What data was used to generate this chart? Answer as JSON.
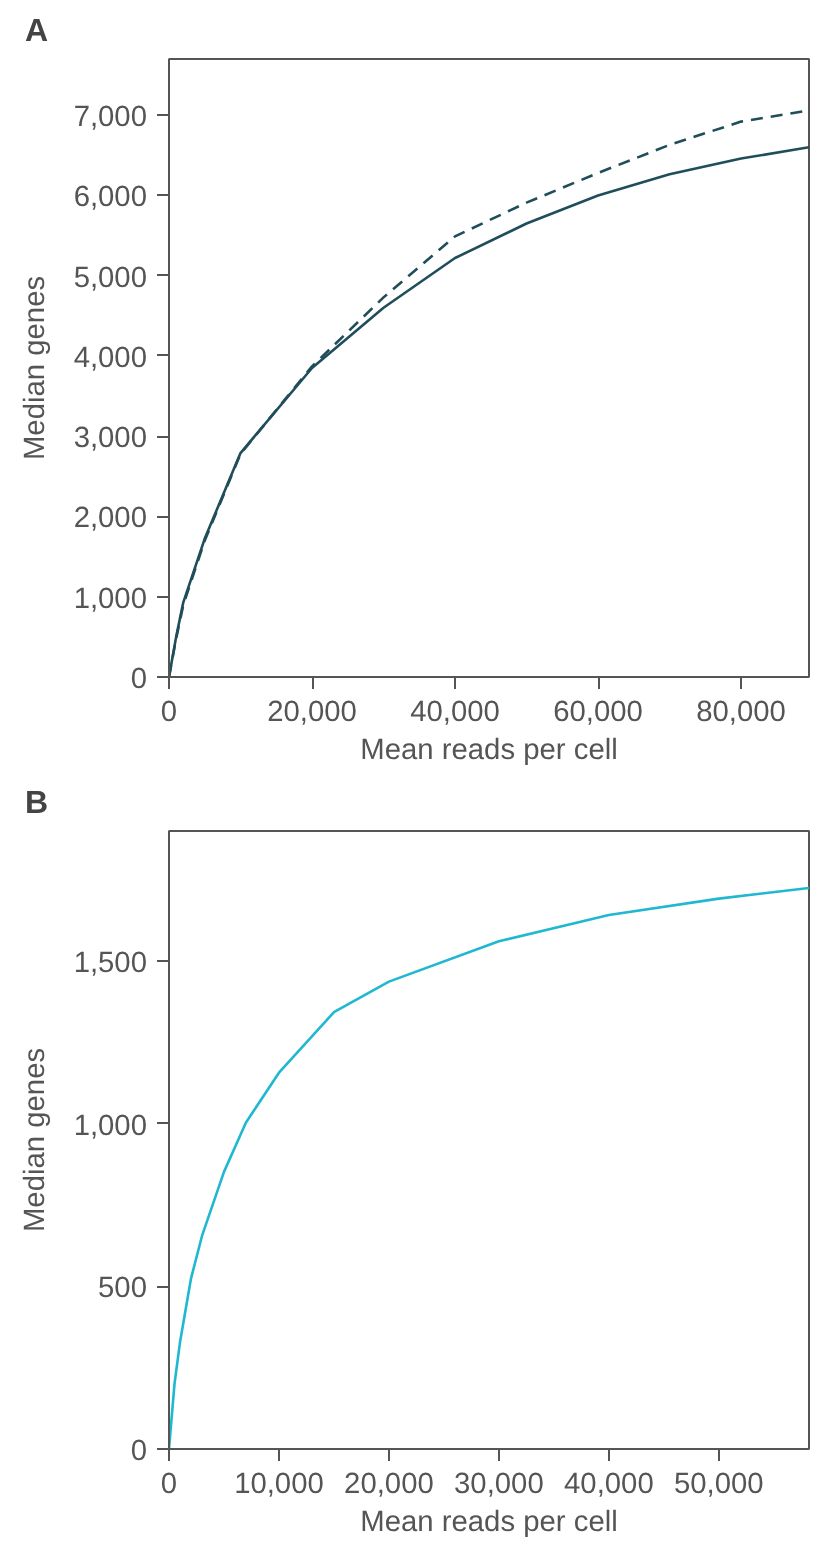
{
  "chart_data": [
    {
      "type": "line",
      "title": "A",
      "xlabel": "Mean reads per cell",
      "ylabel": "Median genes",
      "xlim": [
        0,
        89500
      ],
      "ylim": [
        0,
        7700
      ],
      "xticks": [
        0,
        {
          "value": 20000,
          "label": "20,000"
        },
        {
          "value": 40000,
          "label": "40,000"
        },
        {
          "value": 60000,
          "label": "60,000"
        },
        {
          "value": 80000,
          "label": "80,000"
        }
      ],
      "yticks": [
        0,
        {
          "value": 1000,
          "label": "1,000"
        },
        {
          "value": 2000,
          "label": "2,000"
        },
        {
          "value": 3000,
          "label": "3,000"
        },
        {
          "value": 4000,
          "label": "4,000"
        },
        {
          "value": 5000,
          "label": "5,000"
        },
        {
          "value": 6000,
          "label": "6,000"
        },
        {
          "value": 7000,
          "label": "7,000"
        }
      ],
      "grid": false,
      "x": [
        0,
        1000,
        2000,
        5000,
        10000,
        20000,
        30000,
        40000,
        50000,
        60000,
        70000,
        80000,
        89500
      ],
      "series": [
        {
          "color": "#1f4e5a",
          "line_style": "solid",
          "values": [
            0,
            500,
            930,
            1725,
            2790,
            3850,
            4600,
            5220,
            5650,
            6000,
            6265,
            6460,
            6600
          ]
        },
        {
          "color": "#1f4e5a",
          "line_style": "dashed",
          "values": [
            0,
            480,
            900,
            1700,
            2780,
            3870,
            4730,
            5490,
            5910,
            6280,
            6630,
            6920,
            7060
          ]
        }
      ]
    },
    {
      "type": "line",
      "title": "B",
      "xlabel": "Mean reads per cell",
      "ylabel": "Median genes",
      "xlim": [
        0,
        58200
      ],
      "ylim": [
        0,
        1900
      ],
      "xticks": [
        0,
        {
          "value": 10000,
          "label": "10,000"
        },
        {
          "value": 20000,
          "label": "20,000"
        },
        {
          "value": 30000,
          "label": "30,000"
        },
        {
          "value": 40000,
          "label": "40,000"
        },
        {
          "value": 50000,
          "label": "50,000"
        }
      ],
      "yticks": [
        0,
        500,
        {
          "value": 1000,
          "label": "1,000"
        },
        {
          "value": 1500,
          "label": "1,500"
        }
      ],
      "grid": false,
      "x": [
        0,
        500,
        1000,
        2000,
        3000,
        5000,
        7000,
        10000,
        15000,
        20000,
        30000,
        40000,
        50000,
        58200
      ],
      "series": [
        {
          "color": "#1fb8d0",
          "line_style": "solid",
          "values": [
            0,
            200,
            328,
            524,
            655,
            852,
            1004,
            1157,
            1343,
            1437,
            1561,
            1642,
            1692,
            1725
          ]
        }
      ]
    }
  ]
}
